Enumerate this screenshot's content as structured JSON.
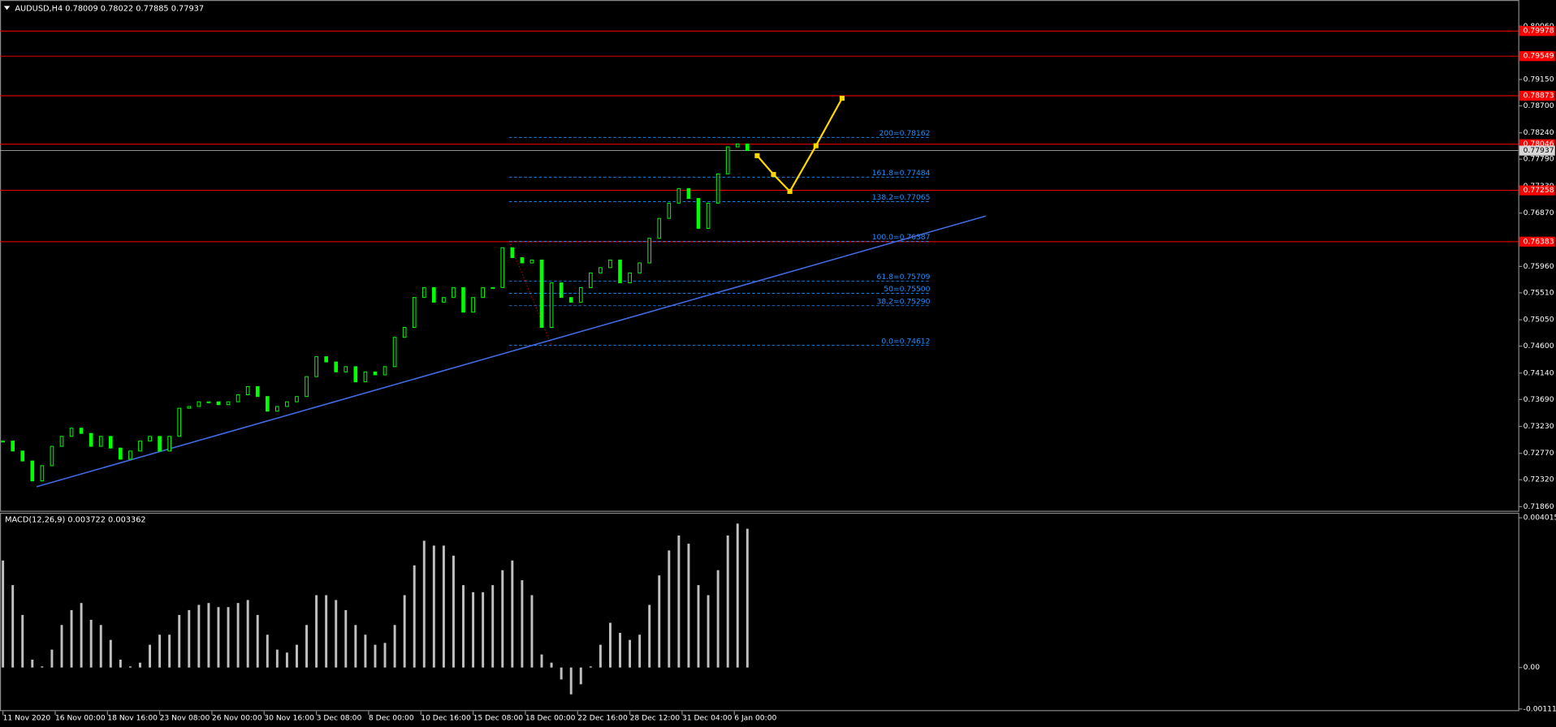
{
  "chart_data": [
    {
      "type": "candlestick",
      "title": "AUDUSD,H4  0.78009 0.78022 0.77885 0.77937",
      "color": "#00ff00",
      "x": [
        0,
        3,
        6,
        9,
        12,
        15,
        18,
        21,
        24,
        27,
        30,
        33,
        36,
        39,
        42,
        45,
        48,
        51,
        54,
        57,
        60,
        63,
        66,
        69,
        72,
        75,
        78,
        81,
        84,
        87,
        90,
        93,
        96,
        99,
        102,
        105,
        108,
        111,
        114,
        117,
        120,
        123,
        126,
        129,
        132,
        135,
        138,
        141,
        144,
        147,
        150,
        153,
        156,
        159,
        162,
        165,
        168,
        171,
        174,
        177,
        180,
        183,
        186,
        189,
        192,
        195,
        198,
        201,
        204,
        207,
        210,
        213,
        216,
        219,
        222,
        225,
        228
      ],
      "values": [
        0.7298,
        0.7281,
        0.7264,
        0.723,
        0.7256,
        0.7289,
        0.7306,
        0.732,
        0.7311,
        0.7289,
        0.7306,
        0.7286,
        0.7267,
        0.7281,
        0.7298,
        0.7306,
        0.7281,
        0.7306,
        0.7354,
        0.7357,
        0.7365,
        0.7365,
        0.736,
        0.7365,
        0.7377,
        0.7391,
        0.7374,
        0.7349,
        0.7357,
        0.7365,
        0.7374,
        0.7408,
        0.7442,
        0.7433,
        0.7416,
        0.7425,
        0.7399,
        0.7416,
        0.7411,
        0.7425,
        0.7475,
        0.7492,
        0.7543,
        0.756,
        0.7535,
        0.7543,
        0.756,
        0.7518,
        0.7543,
        0.756,
        0.756,
        0.7628,
        0.7611,
        0.7602,
        0.7607,
        0.7492,
        0.7568,
        0.7543,
        0.7535,
        0.756,
        0.7585,
        0.7594,
        0.7607,
        0.7568,
        0.7585,
        0.7602,
        0.7644,
        0.7678,
        0.7704,
        0.7729,
        0.7712,
        0.7661,
        0.7704,
        0.7754,
        0.78,
        0.7805,
        0.77937
      ],
      "xlim": [
        -0.9,
        464.1
      ],
      "xticks": [
        {
          "value": 0,
          "label": "11 Nov 2020"
        },
        {
          "value": 16,
          "label": "16 Nov 00:00"
        },
        {
          "value": 32,
          "label": "18 Nov 16:00"
        },
        {
          "value": 48,
          "label": "23 Nov 08:00"
        },
        {
          "value": 64,
          "label": "26 Nov 00:00"
        },
        {
          "value": 80,
          "label": "30 Nov 16:00"
        },
        {
          "value": 96,
          "label": "3 Dec 08:00"
        },
        {
          "value": 112,
          "label": "8 Dec 00:00"
        },
        {
          "value": 128,
          "label": "10 Dec 16:00"
        },
        {
          "value": 144,
          "label": "15 Dec 08:00"
        },
        {
          "value": 160,
          "label": "18 Dec 00:00"
        },
        {
          "value": 176,
          "label": "22 Dec 16:00"
        },
        {
          "value": 192,
          "label": "28 Dec 12:00"
        },
        {
          "value": 208,
          "label": "31 Dec 04:00"
        },
        {
          "value": 224,
          "label": "6 Jan 00:00"
        }
      ],
      "ylim": [
        0.7179,
        0.8027
      ],
      "yticks": [
        {
          "value": 0.8006,
          "label": "0.80060"
        },
        {
          "value": 0.7915,
          "label": "0.79150"
        },
        {
          "value": 0.787,
          "label": "0.78700"
        },
        {
          "value": 0.7824,
          "label": "0.78240"
        },
        {
          "value": 0.7779,
          "label": "0.77790"
        },
        {
          "value": 0.7733,
          "label": "0.77330"
        },
        {
          "value": 0.7687,
          "label": "0.76870"
        },
        {
          "value": 0.7596,
          "label": "0.75960"
        },
        {
          "value": 0.7551,
          "label": "0.75510"
        },
        {
          "value": 0.7505,
          "label": "0.75050"
        },
        {
          "value": 0.746,
          "label": "0.74600"
        },
        {
          "value": 0.7414,
          "label": "0.74140"
        },
        {
          "value": 0.7369,
          "label": "0.73690"
        },
        {
          "value": 0.7323,
          "label": "0.73230"
        },
        {
          "value": 0.7277,
          "label": "0.72770"
        },
        {
          "value": 0.7232,
          "label": "0.72320"
        },
        {
          "value": 0.7186,
          "label": "0.71860"
        }
      ],
      "level_color": "#ff0000",
      "levels": [
        {
          "value": 0.79978,
          "label": "0.79978"
        },
        {
          "value": 0.79549,
          "label": "0.79549"
        },
        {
          "value": 0.78873,
          "label": "0.78873"
        },
        {
          "value": 0.78046,
          "label": "0.78046"
        },
        {
          "value": 0.77258,
          "label": "0.77258"
        },
        {
          "value": 0.76383,
          "label": "0.76383"
        }
      ],
      "bid": {
        "value": 0.77937,
        "label": "0.77937"
      },
      "fibonacci": {
        "color": "#1e90ff",
        "x": [
          155,
          284
        ],
        "levels": [
          {
            "value": 0.78162,
            "label": "200=0.78162"
          },
          {
            "value": 0.77484,
            "label": "161.8=0.77484"
          },
          {
            "value": 0.77065,
            "label": "138.2=0.77065"
          },
          {
            "value": 0.76387,
            "label": "100.0=0.76387"
          },
          {
            "value": 0.75709,
            "label": "61.8=0.75709"
          },
          {
            "value": 0.755,
            "label": "50=0.75500"
          },
          {
            "value": 0.7529,
            "label": "38.2=0.75290"
          },
          {
            "value": 0.74612,
            "label": "0.0=0.74612"
          }
        ],
        "anchor": {
          "x": [
            155,
            168
          ],
          "values": [
            0.76387,
            0.74612
          ]
        }
      },
      "trendline": {
        "color": "#4169e1",
        "x": [
          10.3,
          301
        ],
        "values": [
          0.722,
          0.7682
        ]
      },
      "projection": {
        "color": "#ffd700",
        "x": [
          231,
          236,
          241,
          249,
          257
        ],
        "values": [
          0.7785,
          0.7753,
          0.7724,
          0.7802,
          0.7883
        ]
      }
    },
    {
      "type": "bar",
      "title": "MACD(12,26,9) 0.003722 0.003362",
      "color": "#c0c0c0",
      "x": [
        0,
        3,
        6,
        9,
        12,
        15,
        18,
        21,
        24,
        27,
        30,
        33,
        36,
        39,
        42,
        45,
        48,
        51,
        54,
        57,
        60,
        63,
        66,
        69,
        72,
        75,
        78,
        81,
        84,
        87,
        90,
        93,
        96,
        99,
        102,
        105,
        108,
        111,
        114,
        117,
        120,
        123,
        126,
        129,
        132,
        135,
        138,
        141,
        144,
        147,
        150,
        153,
        156,
        159,
        162,
        165,
        168,
        171,
        174,
        177,
        180,
        183,
        186,
        189,
        192,
        195,
        198,
        201,
        204,
        207,
        210,
        213,
        216,
        219,
        222,
        225,
        228
      ],
      "values": [
        0.00287,
        0.00221,
        0.00141,
        0.00021,
        3e-05,
        0.00048,
        0.00114,
        0.00154,
        0.00173,
        0.00128,
        0.00114,
        0.00074,
        0.00021,
        3e-05,
        0.00013,
        0.00061,
        0.00088,
        0.00088,
        0.00141,
        0.00154,
        0.00168,
        0.00173,
        0.00162,
        0.00162,
        0.00173,
        0.00181,
        0.00141,
        0.00088,
        0.00048,
        0.0004,
        0.00061,
        0.00114,
        0.00194,
        0.00194,
        0.00181,
        0.00154,
        0.00114,
        0.00088,
        0.00061,
        0.00066,
        0.00114,
        0.00194,
        0.00274,
        0.0034,
        0.00327,
        0.00327,
        0.003,
        0.00221,
        0.00202,
        0.00202,
        0.00221,
        0.00261,
        0.00287,
        0.00234,
        0.00194,
        0.00035,
        0.00013,
        -0.00032,
        -0.00072,
        -0.00045,
        3e-05,
        0.00061,
        0.0012,
        0.00093,
        0.00074,
        0.00088,
        0.00168,
        0.00247,
        0.00314,
        0.00354,
        0.00332,
        0.00221,
        0.00194,
        0.00261,
        0.00354,
        0.00386,
        0.003722
      ],
      "xlim": [
        -0.9,
        464.1
      ],
      "ylim": [
        -0.00117,
        0.00415
      ],
      "yticks": [
        0.004015,
        {
          "value": 0,
          "label": "0.00"
        },
        -0.001113
      ]
    }
  ]
}
